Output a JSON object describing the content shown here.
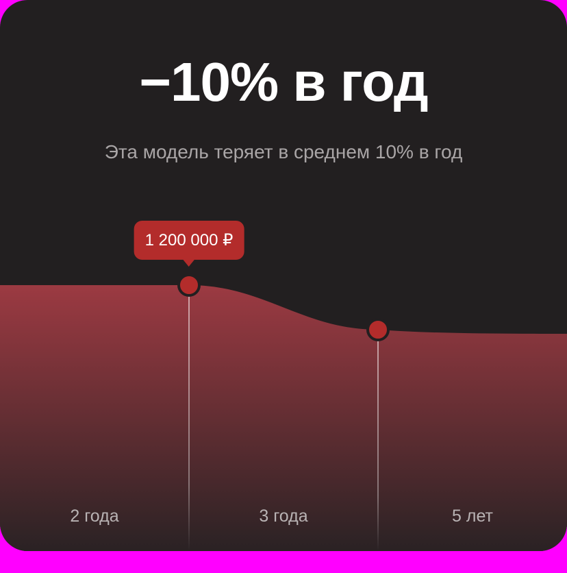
{
  "header": {
    "title": "−10% в год",
    "subtitle": "Эта модель теряет в среднем 10% в год"
  },
  "colors": {
    "background": "#221f20",
    "area_top": "#9c3a42",
    "area_bottom": "#2a2224",
    "point": "#b32c2b",
    "tooltip": "#b32c2b"
  },
  "chart_data": {
    "type": "area",
    "categories": [
      "2 года",
      "3 года",
      "5 лет"
    ],
    "highlighted_points": [
      {
        "category": "2 года",
        "value": 1200000
      },
      {
        "category": "3 года",
        "value": 1080000
      }
    ],
    "tooltip": {
      "category": "2 года",
      "label": "1 200 000 ₽"
    },
    "grid": false,
    "legend": "none"
  }
}
